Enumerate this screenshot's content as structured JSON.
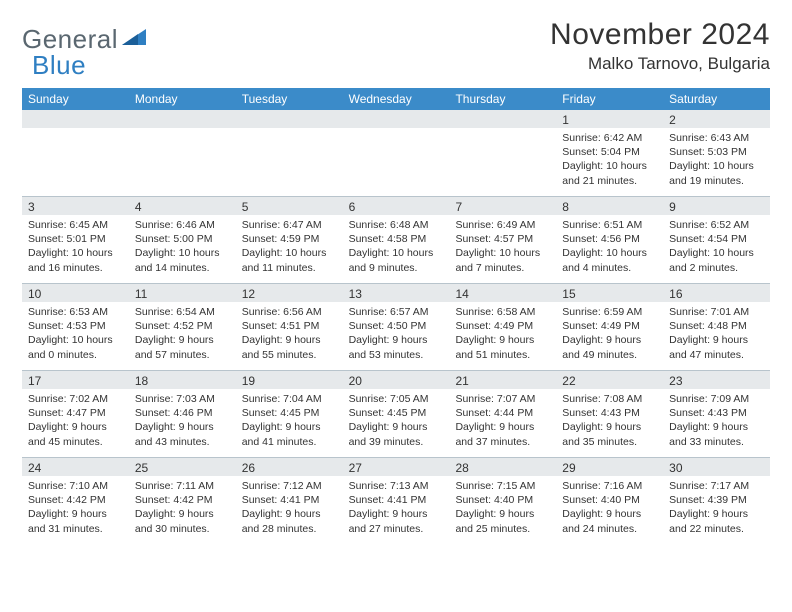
{
  "logo": {
    "part1": "General",
    "part2": "Blue"
  },
  "title": "November 2024",
  "location": "Malko Tarnovo, Bulgaria",
  "colors": {
    "header_bg": "#3b8bc9",
    "header_text": "#ffffff",
    "daynum_bg": "#e6e9eb",
    "text": "#333333",
    "logo_gray": "#5a6770",
    "logo_blue": "#2f7fc2",
    "rule": "#b8c4cc"
  },
  "weekdays": [
    "Sunday",
    "Monday",
    "Tuesday",
    "Wednesday",
    "Thursday",
    "Friday",
    "Saturday"
  ],
  "weeks": [
    [
      {
        "n": "",
        "sr": "",
        "ss": "",
        "dl": ""
      },
      {
        "n": "",
        "sr": "",
        "ss": "",
        "dl": ""
      },
      {
        "n": "",
        "sr": "",
        "ss": "",
        "dl": ""
      },
      {
        "n": "",
        "sr": "",
        "ss": "",
        "dl": ""
      },
      {
        "n": "",
        "sr": "",
        "ss": "",
        "dl": ""
      },
      {
        "n": "1",
        "sr": "Sunrise: 6:42 AM",
        "ss": "Sunset: 5:04 PM",
        "dl": "Daylight: 10 hours and 21 minutes."
      },
      {
        "n": "2",
        "sr": "Sunrise: 6:43 AM",
        "ss": "Sunset: 5:03 PM",
        "dl": "Daylight: 10 hours and 19 minutes."
      }
    ],
    [
      {
        "n": "3",
        "sr": "Sunrise: 6:45 AM",
        "ss": "Sunset: 5:01 PM",
        "dl": "Daylight: 10 hours and 16 minutes."
      },
      {
        "n": "4",
        "sr": "Sunrise: 6:46 AM",
        "ss": "Sunset: 5:00 PM",
        "dl": "Daylight: 10 hours and 14 minutes."
      },
      {
        "n": "5",
        "sr": "Sunrise: 6:47 AM",
        "ss": "Sunset: 4:59 PM",
        "dl": "Daylight: 10 hours and 11 minutes."
      },
      {
        "n": "6",
        "sr": "Sunrise: 6:48 AM",
        "ss": "Sunset: 4:58 PM",
        "dl": "Daylight: 10 hours and 9 minutes."
      },
      {
        "n": "7",
        "sr": "Sunrise: 6:49 AM",
        "ss": "Sunset: 4:57 PM",
        "dl": "Daylight: 10 hours and 7 minutes."
      },
      {
        "n": "8",
        "sr": "Sunrise: 6:51 AM",
        "ss": "Sunset: 4:56 PM",
        "dl": "Daylight: 10 hours and 4 minutes."
      },
      {
        "n": "9",
        "sr": "Sunrise: 6:52 AM",
        "ss": "Sunset: 4:54 PM",
        "dl": "Daylight: 10 hours and 2 minutes."
      }
    ],
    [
      {
        "n": "10",
        "sr": "Sunrise: 6:53 AM",
        "ss": "Sunset: 4:53 PM",
        "dl": "Daylight: 10 hours and 0 minutes."
      },
      {
        "n": "11",
        "sr": "Sunrise: 6:54 AM",
        "ss": "Sunset: 4:52 PM",
        "dl": "Daylight: 9 hours and 57 minutes."
      },
      {
        "n": "12",
        "sr": "Sunrise: 6:56 AM",
        "ss": "Sunset: 4:51 PM",
        "dl": "Daylight: 9 hours and 55 minutes."
      },
      {
        "n": "13",
        "sr": "Sunrise: 6:57 AM",
        "ss": "Sunset: 4:50 PM",
        "dl": "Daylight: 9 hours and 53 minutes."
      },
      {
        "n": "14",
        "sr": "Sunrise: 6:58 AM",
        "ss": "Sunset: 4:49 PM",
        "dl": "Daylight: 9 hours and 51 minutes."
      },
      {
        "n": "15",
        "sr": "Sunrise: 6:59 AM",
        "ss": "Sunset: 4:49 PM",
        "dl": "Daylight: 9 hours and 49 minutes."
      },
      {
        "n": "16",
        "sr": "Sunrise: 7:01 AM",
        "ss": "Sunset: 4:48 PM",
        "dl": "Daylight: 9 hours and 47 minutes."
      }
    ],
    [
      {
        "n": "17",
        "sr": "Sunrise: 7:02 AM",
        "ss": "Sunset: 4:47 PM",
        "dl": "Daylight: 9 hours and 45 minutes."
      },
      {
        "n": "18",
        "sr": "Sunrise: 7:03 AM",
        "ss": "Sunset: 4:46 PM",
        "dl": "Daylight: 9 hours and 43 minutes."
      },
      {
        "n": "19",
        "sr": "Sunrise: 7:04 AM",
        "ss": "Sunset: 4:45 PM",
        "dl": "Daylight: 9 hours and 41 minutes."
      },
      {
        "n": "20",
        "sr": "Sunrise: 7:05 AM",
        "ss": "Sunset: 4:45 PM",
        "dl": "Daylight: 9 hours and 39 minutes."
      },
      {
        "n": "21",
        "sr": "Sunrise: 7:07 AM",
        "ss": "Sunset: 4:44 PM",
        "dl": "Daylight: 9 hours and 37 minutes."
      },
      {
        "n": "22",
        "sr": "Sunrise: 7:08 AM",
        "ss": "Sunset: 4:43 PM",
        "dl": "Daylight: 9 hours and 35 minutes."
      },
      {
        "n": "23",
        "sr": "Sunrise: 7:09 AM",
        "ss": "Sunset: 4:43 PM",
        "dl": "Daylight: 9 hours and 33 minutes."
      }
    ],
    [
      {
        "n": "24",
        "sr": "Sunrise: 7:10 AM",
        "ss": "Sunset: 4:42 PM",
        "dl": "Daylight: 9 hours and 31 minutes."
      },
      {
        "n": "25",
        "sr": "Sunrise: 7:11 AM",
        "ss": "Sunset: 4:42 PM",
        "dl": "Daylight: 9 hours and 30 minutes."
      },
      {
        "n": "26",
        "sr": "Sunrise: 7:12 AM",
        "ss": "Sunset: 4:41 PM",
        "dl": "Daylight: 9 hours and 28 minutes."
      },
      {
        "n": "27",
        "sr": "Sunrise: 7:13 AM",
        "ss": "Sunset: 4:41 PM",
        "dl": "Daylight: 9 hours and 27 minutes."
      },
      {
        "n": "28",
        "sr": "Sunrise: 7:15 AM",
        "ss": "Sunset: 4:40 PM",
        "dl": "Daylight: 9 hours and 25 minutes."
      },
      {
        "n": "29",
        "sr": "Sunrise: 7:16 AM",
        "ss": "Sunset: 4:40 PM",
        "dl": "Daylight: 9 hours and 24 minutes."
      },
      {
        "n": "30",
        "sr": "Sunrise: 7:17 AM",
        "ss": "Sunset: 4:39 PM",
        "dl": "Daylight: 9 hours and 22 minutes."
      }
    ]
  ]
}
